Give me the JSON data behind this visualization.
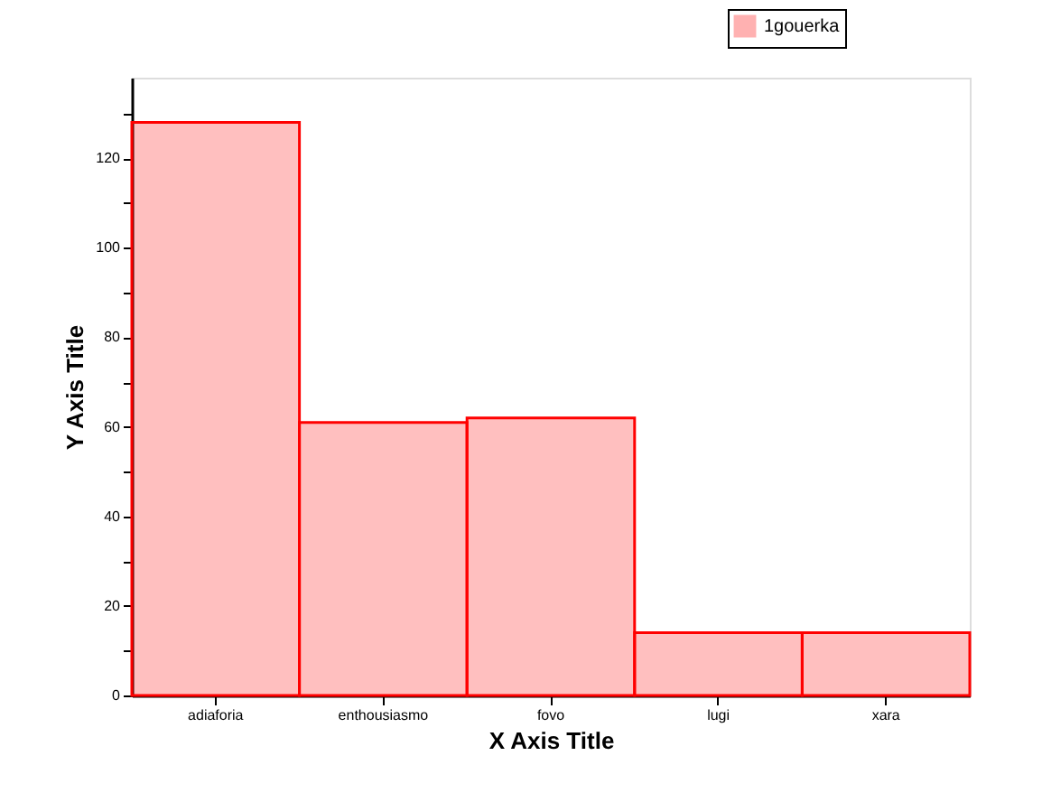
{
  "chart_data": {
    "type": "bar",
    "xlabel": "X Axis Title",
    "ylabel": "Y Axis Title",
    "categories": [
      "adiaforia",
      "enthousiasmo",
      "fovo",
      "lugi",
      "xara"
    ],
    "series": [
      {
        "name": "1gouerka",
        "color": "#ff0000",
        "values": [
          128,
          61,
          62,
          14,
          14
        ]
      }
    ],
    "ylim": [
      0,
      138
    ],
    "yticks": [
      0,
      {
        "value": 10,
        "label": null
      },
      20,
      {
        "value": 30,
        "label": null
      },
      40,
      {
        "value": 50,
        "label": null
      },
      60,
      {
        "value": 70,
        "label": null
      },
      80,
      {
        "value": 90,
        "label": null
      },
      100,
      {
        "value": 110,
        "label": null
      },
      120,
      {
        "value": 130,
        "label": null
      }
    ],
    "grid": false,
    "legend": "top right"
  }
}
